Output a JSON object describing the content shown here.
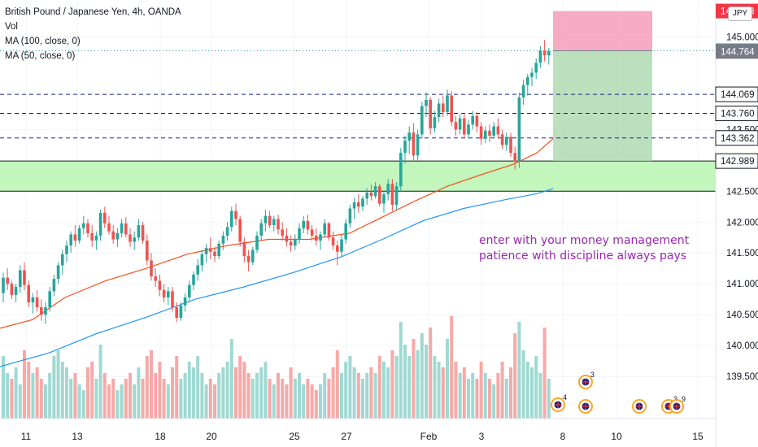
{
  "header": {
    "title": "British Pound / Japanese Yen, 4h, OANDA",
    "vol_label": "Vol",
    "ma100_label": "MA (100, close, 0)",
    "ma50_label": "MA (50, close, 0)",
    "currency": "JPY"
  },
  "annotation": {
    "line1": "enter with your money management",
    "line2": "patience with discipline always pays"
  },
  "chart_data": {
    "type": "candlestick",
    "symbol": "GBPJPY",
    "timeframe": "4h",
    "ylim": [
      139.35,
      145.45
    ],
    "y_ticks": [
      "145.000",
      "143.500",
      "142.500",
      "142.000",
      "141.500",
      "141.000",
      "140.500",
      "140.000",
      "139.500"
    ],
    "x_ticks": [
      "11",
      "13",
      "18",
      "20",
      "25",
      "27",
      "Feb",
      "3",
      "8",
      "10",
      "15"
    ],
    "price_labels": [
      {
        "value": 145.418,
        "text": "145.418",
        "color": "#f23645"
      },
      {
        "value": 144.774,
        "text": "144.774",
        "color": "#26a69a"
      },
      {
        "value": 144.764,
        "text": "144.764",
        "color": "#787b86"
      },
      {
        "value": 144.069,
        "text": "144.069",
        "color": "#131722"
      },
      {
        "value": 143.76,
        "text": "143.760",
        "color": "#131722"
      },
      {
        "value": 143.362,
        "text": "143.362",
        "color": "#131722"
      },
      {
        "value": 142.989,
        "text": "142.989",
        "color": "#131722"
      }
    ],
    "horizontal_levels": [
      144.069,
      143.76,
      143.362
    ],
    "support_zone": [
      142.5,
      142.989
    ],
    "position": {
      "entry": 144.774,
      "stop": 145.418,
      "target": 142.989
    },
    "ma50": [
      [
        0,
        140.28
      ],
      [
        40,
        140.42
      ],
      [
        80,
        140.78
      ],
      [
        130,
        141.05
      ],
      [
        180,
        141.25
      ],
      [
        230,
        141.48
      ],
      [
        280,
        141.62
      ],
      [
        330,
        141.72
      ],
      [
        380,
        141.72
      ],
      [
        430,
        141.82
      ],
      [
        470,
        142.08
      ],
      [
        510,
        142.34
      ],
      [
        550,
        142.58
      ],
      [
        590,
        142.76
      ],
      [
        630,
        142.93
      ],
      [
        660,
        143.12
      ],
      [
        680,
        143.35
      ]
    ],
    "ma100": [
      [
        0,
        139.66
      ],
      [
        60,
        139.88
      ],
      [
        120,
        140.2
      ],
      [
        180,
        140.46
      ],
      [
        240,
        140.75
      ],
      [
        300,
        140.95
      ],
      [
        360,
        141.18
      ],
      [
        420,
        141.44
      ],
      [
        470,
        141.72
      ],
      [
        520,
        142.02
      ],
      [
        570,
        142.22
      ],
      [
        620,
        142.36
      ],
      [
        660,
        142.46
      ],
      [
        680,
        142.54
      ]
    ],
    "candles": [
      [
        140.85,
        141.18,
        140.7,
        141.1
      ],
      [
        141.1,
        141.25,
        140.9,
        141.0
      ],
      [
        141.0,
        141.05,
        140.75,
        140.82
      ],
      [
        140.82,
        141.0,
        140.7,
        140.95
      ],
      [
        140.95,
        141.3,
        140.85,
        141.22
      ],
      [
        141.22,
        141.35,
        140.9,
        140.98
      ],
      [
        140.98,
        141.05,
        140.62,
        140.7
      ],
      [
        140.7,
        140.85,
        140.52,
        140.78
      ],
      [
        140.78,
        140.9,
        140.55,
        140.62
      ],
      [
        140.62,
        140.75,
        140.4,
        140.5
      ],
      [
        140.5,
        140.7,
        140.35,
        140.62
      ],
      [
        140.62,
        140.95,
        140.55,
        140.88
      ],
      [
        140.88,
        141.15,
        140.8,
        141.08
      ],
      [
        141.08,
        141.35,
        141.0,
        141.3
      ],
      [
        141.3,
        141.55,
        141.15,
        141.48
      ],
      [
        141.48,
        141.7,
        141.35,
        141.62
      ],
      [
        141.62,
        141.85,
        141.5,
        141.8
      ],
      [
        141.8,
        141.95,
        141.6,
        141.7
      ],
      [
        141.7,
        141.95,
        141.65,
        141.9
      ],
      [
        141.9,
        142.1,
        141.8,
        141.98
      ],
      [
        141.98,
        142.05,
        141.75,
        141.82
      ],
      [
        141.82,
        141.95,
        141.6,
        141.7
      ],
      [
        141.7,
        141.85,
        141.55,
        141.78
      ],
      [
        141.78,
        142.2,
        141.7,
        142.15
      ],
      [
        142.15,
        142.25,
        141.9,
        141.98
      ],
      [
        141.98,
        142.1,
        141.8,
        141.85
      ],
      [
        141.85,
        141.95,
        141.65,
        141.72
      ],
      [
        141.72,
        141.9,
        141.6,
        141.82
      ],
      [
        141.82,
        142.05,
        141.75,
        141.98
      ],
      [
        141.98,
        142.08,
        141.75,
        141.8
      ],
      [
        141.8,
        141.9,
        141.6,
        141.68
      ],
      [
        141.68,
        141.85,
        141.55,
        141.75
      ],
      [
        141.75,
        142.05,
        141.7,
        141.95
      ],
      [
        141.95,
        142.0,
        141.65,
        141.7
      ],
      [
        141.7,
        141.8,
        141.3,
        141.38
      ],
      [
        141.38,
        141.5,
        141.05,
        141.12
      ],
      [
        141.12,
        141.25,
        140.95,
        141.05
      ],
      [
        141.05,
        141.15,
        140.8,
        140.9
      ],
      [
        140.9,
        141.0,
        140.7,
        140.78
      ],
      [
        140.78,
        140.95,
        140.65,
        140.88
      ],
      [
        140.88,
        140.95,
        140.55,
        140.62
      ],
      [
        140.62,
        140.7,
        140.38,
        140.45
      ],
      [
        140.45,
        140.7,
        140.4,
        140.65
      ],
      [
        140.65,
        140.85,
        140.55,
        140.78
      ],
      [
        140.78,
        141.05,
        140.7,
        140.98
      ],
      [
        140.98,
        141.2,
        140.9,
        141.15
      ],
      [
        141.15,
        141.4,
        141.05,
        141.3
      ],
      [
        141.3,
        141.55,
        141.2,
        141.48
      ],
      [
        141.48,
        141.65,
        141.35,
        141.58
      ],
      [
        141.58,
        141.75,
        141.4,
        141.52
      ],
      [
        141.52,
        141.6,
        141.35,
        141.45
      ],
      [
        141.45,
        141.7,
        141.4,
        141.65
      ],
      [
        141.65,
        141.85,
        141.55,
        141.78
      ],
      [
        141.78,
        142.0,
        141.7,
        141.92
      ],
      [
        141.92,
        142.25,
        141.85,
        142.18
      ],
      [
        142.18,
        142.3,
        141.95,
        142.05
      ],
      [
        142.05,
        142.1,
        141.6,
        141.68
      ],
      [
        141.68,
        141.75,
        141.35,
        141.45
      ],
      [
        141.45,
        141.55,
        141.2,
        141.35
      ],
      [
        141.35,
        141.6,
        141.3,
        141.55
      ],
      [
        141.55,
        141.85,
        141.5,
        141.78
      ],
      [
        141.78,
        142.05,
        141.7,
        141.98
      ],
      [
        141.98,
        142.2,
        141.85,
        142.1
      ],
      [
        142.1,
        142.18,
        141.9,
        141.95
      ],
      [
        141.95,
        142.1,
        141.85,
        142.05
      ],
      [
        142.05,
        142.12,
        141.8,
        141.88
      ],
      [
        141.88,
        142.0,
        141.7,
        141.78
      ],
      [
        141.78,
        141.9,
        141.6,
        141.68
      ],
      [
        141.68,
        141.78,
        141.52,
        141.62
      ],
      [
        141.62,
        141.8,
        141.55,
        141.72
      ],
      [
        141.72,
        141.98,
        141.65,
        141.9
      ],
      [
        141.9,
        142.1,
        141.82,
        142.02
      ],
      [
        142.02,
        142.12,
        141.8,
        141.88
      ],
      [
        141.88,
        141.95,
        141.7,
        141.78
      ],
      [
        141.78,
        141.9,
        141.62,
        141.7
      ],
      [
        141.7,
        141.85,
        141.55,
        141.8
      ],
      [
        141.8,
        142.05,
        141.75,
        141.98
      ],
      [
        141.98,
        142.0,
        141.7,
        141.75
      ],
      [
        141.75,
        141.85,
        141.55,
        141.62
      ],
      [
        141.62,
        141.7,
        141.3,
        141.52
      ],
      [
        141.52,
        141.8,
        141.45,
        141.72
      ],
      [
        141.72,
        142.05,
        141.65,
        141.98
      ],
      [
        141.98,
        142.28,
        141.9,
        142.22
      ],
      [
        142.22,
        142.4,
        142.05,
        142.32
      ],
      [
        142.32,
        142.45,
        142.15,
        142.25
      ],
      [
        142.25,
        142.42,
        142.18,
        142.38
      ],
      [
        142.38,
        142.55,
        142.28,
        142.48
      ],
      [
        142.48,
        142.6,
        142.35,
        142.42
      ],
      [
        142.42,
        142.65,
        142.38,
        142.58
      ],
      [
        142.58,
        142.62,
        142.25,
        142.3
      ],
      [
        142.3,
        142.5,
        142.15,
        142.45
      ],
      [
        142.45,
        142.7,
        142.35,
        142.62
      ],
      [
        142.62,
        142.7,
        142.18,
        142.28
      ],
      [
        142.28,
        142.65,
        142.2,
        142.58
      ],
      [
        142.58,
        143.2,
        142.5,
        143.12
      ],
      [
        143.12,
        143.4,
        142.95,
        143.32
      ],
      [
        143.32,
        143.55,
        143.1,
        143.45
      ],
      [
        143.45,
        143.6,
        143.0,
        143.08
      ],
      [
        143.08,
        143.5,
        143.0,
        143.42
      ],
      [
        143.42,
        143.95,
        143.35,
        143.88
      ],
      [
        143.88,
        144.1,
        143.7,
        143.98
      ],
      [
        143.98,
        144.02,
        143.42,
        143.52
      ],
      [
        143.52,
        143.8,
        143.45,
        143.7
      ],
      [
        143.7,
        144.0,
        143.62,
        143.92
      ],
      [
        143.92,
        144.05,
        143.7,
        143.78
      ],
      [
        143.78,
        144.15,
        143.72,
        144.05
      ],
      [
        144.05,
        144.12,
        143.55,
        143.62
      ],
      [
        143.62,
        143.72,
        143.4,
        143.5
      ],
      [
        143.5,
        143.75,
        143.42,
        143.68
      ],
      [
        143.68,
        143.75,
        143.35,
        143.42
      ],
      [
        143.42,
        143.65,
        143.35,
        143.58
      ],
      [
        143.58,
        143.8,
        143.5,
        143.72
      ],
      [
        143.72,
        143.78,
        143.45,
        143.55
      ],
      [
        143.55,
        143.62,
        143.25,
        143.35
      ],
      [
        143.35,
        143.55,
        143.28,
        143.48
      ],
      [
        143.48,
        143.58,
        143.3,
        143.4
      ],
      [
        143.4,
        143.62,
        143.35,
        143.55
      ],
      [
        143.55,
        143.68,
        143.35,
        143.42
      ],
      [
        143.42,
        143.5,
        143.18,
        143.25
      ],
      [
        143.25,
        143.45,
        143.15,
        143.38
      ],
      [
        143.38,
        143.45,
        143.05,
        143.12
      ],
      [
        143.12,
        143.22,
        142.85,
        142.98
      ],
      [
        142.98,
        144.1,
        142.88,
        144.02
      ],
      [
        144.02,
        144.3,
        143.9,
        144.22
      ],
      [
        144.22,
        144.4,
        144.05,
        144.35
      ],
      [
        144.35,
        144.5,
        144.2,
        144.42
      ],
      [
        144.42,
        144.65,
        144.32,
        144.58
      ],
      [
        144.58,
        144.85,
        144.5,
        144.78
      ],
      [
        144.78,
        144.95,
        144.6,
        144.7
      ],
      [
        144.7,
        144.82,
        144.55,
        144.77
      ]
    ],
    "volumes": [
      [
        0.55,
        0
      ],
      [
        0.4,
        0
      ],
      [
        0.35,
        1
      ],
      [
        0.45,
        0
      ],
      [
        0.3,
        0
      ],
      [
        0.6,
        1
      ],
      [
        0.5,
        1
      ],
      [
        0.4,
        0
      ],
      [
        0.45,
        1
      ],
      [
        0.35,
        1
      ],
      [
        0.3,
        0
      ],
      [
        0.4,
        0
      ],
      [
        0.55,
        0
      ],
      [
        0.6,
        0
      ],
      [
        0.5,
        0
      ],
      [
        0.45,
        0
      ],
      [
        0.35,
        0
      ],
      [
        0.4,
        1
      ],
      [
        0.3,
        0
      ],
      [
        0.25,
        0
      ],
      [
        0.45,
        1
      ],
      [
        0.5,
        1
      ],
      [
        0.35,
        0
      ],
      [
        0.65,
        0
      ],
      [
        0.4,
        1
      ],
      [
        0.3,
        1
      ],
      [
        0.35,
        1
      ],
      [
        0.25,
        0
      ],
      [
        0.3,
        0
      ],
      [
        0.35,
        1
      ],
      [
        0.4,
        1
      ],
      [
        0.3,
        0
      ],
      [
        0.45,
        0
      ],
      [
        0.35,
        1
      ],
      [
        0.55,
        1
      ],
      [
        0.6,
        1
      ],
      [
        0.4,
        1
      ],
      [
        0.5,
        1
      ],
      [
        0.35,
        1
      ],
      [
        0.3,
        0
      ],
      [
        0.45,
        1
      ],
      [
        0.55,
        1
      ],
      [
        0.35,
        0
      ],
      [
        0.4,
        0
      ],
      [
        0.5,
        0
      ],
      [
        0.45,
        0
      ],
      [
        0.55,
        0
      ],
      [
        0.4,
        0
      ],
      [
        0.3,
        0
      ],
      [
        0.35,
        1
      ],
      [
        0.3,
        1
      ],
      [
        0.4,
        0
      ],
      [
        0.45,
        0
      ],
      [
        0.5,
        0
      ],
      [
        0.7,
        0
      ],
      [
        0.45,
        1
      ],
      [
        0.55,
        1
      ],
      [
        0.5,
        1
      ],
      [
        0.4,
        1
      ],
      [
        0.35,
        0
      ],
      [
        0.4,
        0
      ],
      [
        0.45,
        0
      ],
      [
        0.5,
        0
      ],
      [
        0.35,
        1
      ],
      [
        0.3,
        0
      ],
      [
        0.4,
        1
      ],
      [
        0.35,
        1
      ],
      [
        0.3,
        1
      ],
      [
        0.45,
        1
      ],
      [
        0.35,
        0
      ],
      [
        0.4,
        0
      ],
      [
        0.3,
        0
      ],
      [
        0.35,
        1
      ],
      [
        0.3,
        1
      ],
      [
        0.25,
        1
      ],
      [
        0.3,
        0
      ],
      [
        0.4,
        0
      ],
      [
        0.35,
        1
      ],
      [
        0.45,
        1
      ],
      [
        0.6,
        1
      ],
      [
        0.4,
        0
      ],
      [
        0.5,
        0
      ],
      [
        0.55,
        0
      ],
      [
        0.45,
        0
      ],
      [
        0.4,
        1
      ],
      [
        0.35,
        0
      ],
      [
        0.4,
        0
      ],
      [
        0.45,
        1
      ],
      [
        0.4,
        0
      ],
      [
        0.55,
        1
      ],
      [
        0.5,
        0
      ],
      [
        0.45,
        0
      ],
      [
        0.6,
        1
      ],
      [
        0.55,
        0
      ],
      [
        0.85,
        0
      ],
      [
        0.65,
        0
      ],
      [
        0.55,
        0
      ],
      [
        0.7,
        1
      ],
      [
        0.6,
        0
      ],
      [
        0.75,
        0
      ],
      [
        0.65,
        0
      ],
      [
        0.8,
        1
      ],
      [
        0.55,
        0
      ],
      [
        0.5,
        0
      ],
      [
        0.45,
        1
      ],
      [
        0.7,
        0
      ],
      [
        0.9,
        1
      ],
      [
        0.5,
        1
      ],
      [
        0.4,
        0
      ],
      [
        0.45,
        1
      ],
      [
        0.35,
        0
      ],
      [
        0.4,
        0
      ],
      [
        0.35,
        1
      ],
      [
        0.5,
        1
      ],
      [
        0.4,
        0
      ],
      [
        0.35,
        1
      ],
      [
        0.3,
        0
      ],
      [
        0.4,
        1
      ],
      [
        0.5,
        1
      ],
      [
        0.35,
        0
      ],
      [
        0.45,
        1
      ],
      [
        0.75,
        1
      ],
      [
        0.85,
        0
      ],
      [
        0.6,
        0
      ],
      [
        0.5,
        0
      ],
      [
        0.45,
        0
      ],
      [
        0.55,
        0
      ],
      [
        0.4,
        0
      ],
      [
        0.8,
        1
      ],
      [
        0.35,
        0
      ]
    ]
  }
}
